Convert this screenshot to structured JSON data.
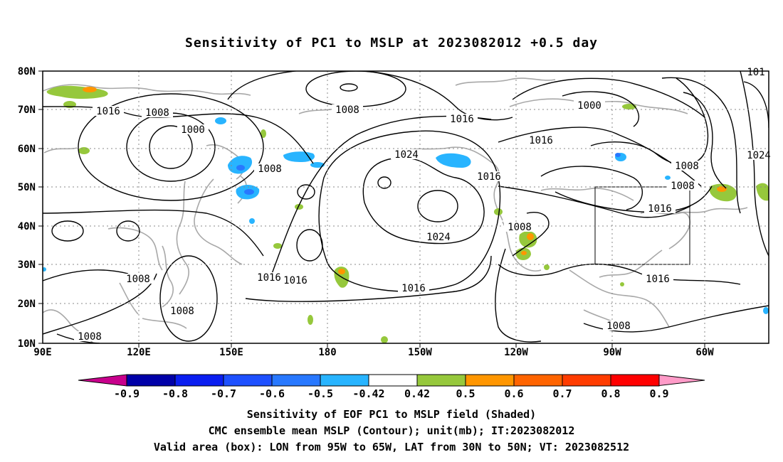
{
  "title": "Sensitivity of PC1 to MSLP at 2023082012 +0.5 day",
  "lat_labels": [
    "80N",
    "70N",
    "60N",
    "50N",
    "40N",
    "30N",
    "20N",
    "10N"
  ],
  "lon_labels": [
    "90E",
    "120E",
    "150E",
    "180",
    "150W",
    "120W",
    "90W",
    "60W"
  ],
  "contour_labels": [
    "1016",
    "1008",
    "1000",
    "1008",
    "1016",
    "1024",
    "1016",
    "1000",
    "1008",
    "1016",
    "1024",
    "1016",
    "1008",
    "1008",
    "1016",
    "1016",
    "1008",
    "1008",
    "1016",
    "1008",
    "1008",
    "1024",
    "101",
    "1016"
  ],
  "colorbar": {
    "ticks": [
      "-0.9",
      "-0.8",
      "-0.7",
      "-0.6",
      "-0.5",
      "-0.42",
      "0.42",
      "0.5",
      "0.6",
      "0.7",
      "0.8",
      "0.9"
    ],
    "colors": [
      "#0000a8",
      "#0a1ef0",
      "#1e50ff",
      "#2878ff",
      "#28b4ff",
      "#ffffff",
      "#96c83c",
      "#ff9600",
      "#ff6400",
      "#ff3c00",
      "#ff0000"
    ],
    "low_end_color": "#c8008c",
    "high_end_color": "#ff9bc8"
  },
  "captions": {
    "line1": "Sensitivity of EOF PC1 to MSLP field (Shaded)",
    "line2": "CMC ensemble mean MSLP (Contour); unit(mb); IT:2023082012",
    "line3": "Valid area (box): LON from 95W to 65W, LAT from 30N to 50N; VT: 2023082512"
  }
}
